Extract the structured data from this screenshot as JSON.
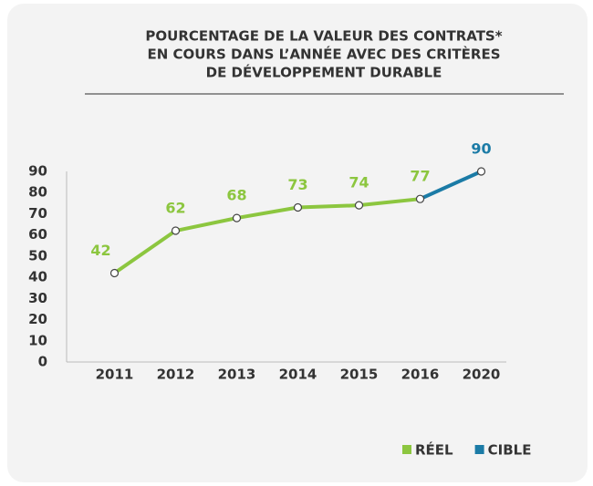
{
  "chart_data": {
    "type": "line",
    "title": [
      "POURCENTAGE DE LA VALEUR DES CONTRATS*",
      "EN COURS DANS L’ANNÉE AVEC DES CRITÈRES",
      "DE DÉVELOPPEMENT DURABLE"
    ],
    "categories": [
      "2011",
      "2012",
      "2013",
      "2014",
      "2015",
      "2016",
      "2020"
    ],
    "series": [
      {
        "name": "RÉEL",
        "color": "#8cc63f",
        "values": [
          42,
          62,
          68,
          73,
          74,
          77,
          null
        ]
      },
      {
        "name": "CIBLE",
        "color": "#1b7ba6",
        "values": [
          null,
          null,
          null,
          null,
          null,
          null,
          90
        ]
      }
    ],
    "ylim": [
      0,
      90
    ],
    "yticks": [
      0,
      10,
      20,
      30,
      40,
      50,
      60,
      70,
      80,
      90
    ],
    "legend": "bottom-right"
  }
}
